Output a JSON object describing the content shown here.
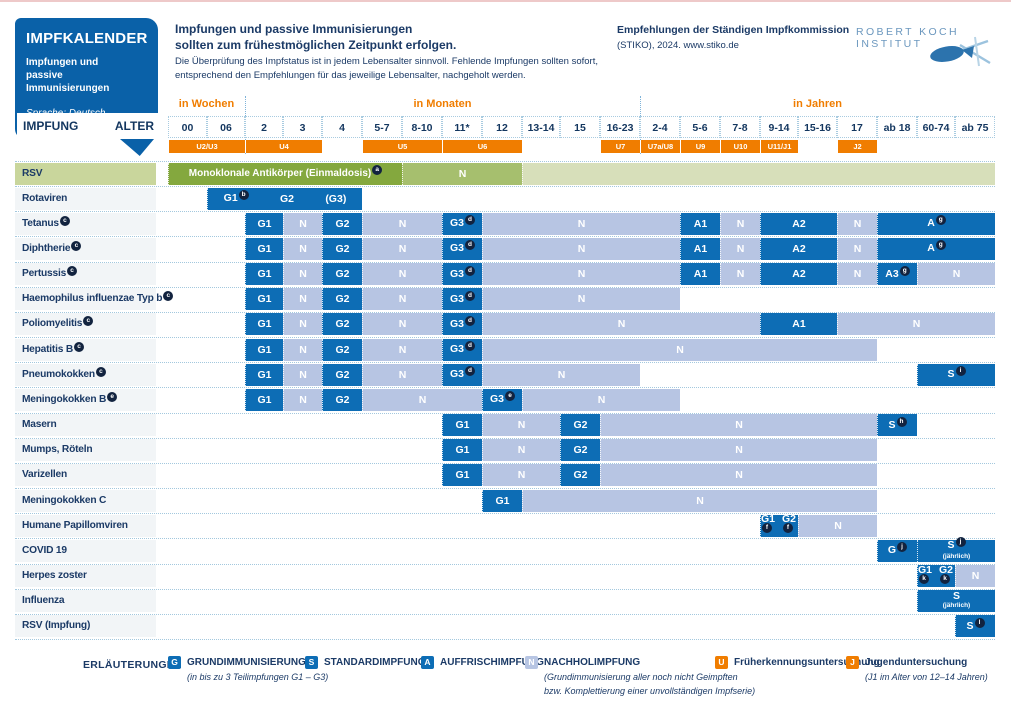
{
  "header": {
    "box_title": "IMPFKALENDER",
    "box_sub1": "Impfungen und",
    "box_sub2": "passive Immunisierungen",
    "box_language": "Sprache: Deutsch",
    "impfung_label": "IMPFUNG",
    "alter_label": "ALTER",
    "intro_bold_1": "Impfungen und passive Immunisierungen",
    "intro_bold_2": "sollten zum frühestmöglichen Zeitpunkt erfolgen.",
    "intro_small_1": "Die Überprüfung des Impfstatus ist in jedem Lebensalter sinnvoll. Fehlende Impfungen sollten sofort,",
    "intro_small_2": "entsprechend den Empfehlungen für das jeweilige Lebensalter, nachgeholt werden.",
    "stiko_bold": "Empfehlungen der Ständigen Impfkommission",
    "stiko_small": "(STIKO), 2024. www.stiko.de",
    "rki_logo_text": "ROBERT KOCH INSTITUT"
  },
  "age_scale": {
    "groups": [
      {
        "label": "in Wochen",
        "c0": 0,
        "c1": 1
      },
      {
        "label": "in Monaten",
        "c0": 2,
        "c1": 11
      },
      {
        "label": "in Jahren",
        "c0": 12,
        "c1": 20
      }
    ],
    "columns": [
      "00",
      "06",
      "2",
      "3",
      "4",
      "5-7",
      "8-10",
      "11*",
      "12",
      "13-14",
      "15",
      "16-23",
      "2-4",
      "5-6",
      "7-8",
      "9-14",
      "15-16",
      "17",
      "ab 18",
      "60-74",
      "ab 75"
    ],
    "u_bands": [
      {
        "label": "U2/U3",
        "c0": 0,
        "c1": 1
      },
      {
        "label": "U4",
        "c0": 2,
        "c1": 3
      },
      {
        "label": "U5",
        "c0": 5,
        "c1": 6
      },
      {
        "label": "U6",
        "c0": 7,
        "c1": 8
      },
      {
        "label": "U7",
        "c0": 11,
        "c1": 11
      },
      {
        "label": "U7a/U8",
        "c0": 12,
        "c1": 12
      },
      {
        "label": "U9",
        "c0": 13,
        "c1": 13
      },
      {
        "label": "U10",
        "c0": 14,
        "c1": 14
      },
      {
        "label": "U11/J1",
        "c0": 15,
        "c1": 15
      },
      {
        "label": "J2",
        "c0": 17,
        "c1": 17
      }
    ]
  },
  "rows": [
    {
      "label": "RSV",
      "label_style": "green",
      "cells": [
        {
          "style": "green-dark",
          "text": "Monoklonale Antikörper (Einmaldosis)",
          "sup": "a",
          "c0": 0,
          "c1": 5
        },
        {
          "style": "green-mid",
          "text": "N",
          "c0": 6,
          "c1": 8
        },
        {
          "style": "green-pale",
          "text": "",
          "c0": 9,
          "c1": 20
        }
      ]
    },
    {
      "label": "Rotaviren",
      "cells": [
        {
          "style": "dark",
          "parts": [
            {
              "text": "G1",
              "sup": "b"
            },
            {
              "text": "G2"
            },
            {
              "text": "(G3)"
            }
          ],
          "c0": 1,
          "c1": 4
        }
      ]
    },
    {
      "label": "Tetanus",
      "label_sup": "c",
      "cells": [
        {
          "style": "dark",
          "text": "G1",
          "c0": 2,
          "c1": 2
        },
        {
          "style": "light",
          "text": "N",
          "c0": 3,
          "c1": 3
        },
        {
          "style": "dark",
          "text": "G2",
          "c0": 4,
          "c1": 4
        },
        {
          "style": "light",
          "text": "N",
          "c0": 5,
          "c1": 6
        },
        {
          "style": "dark",
          "text": "G3",
          "sup": "d",
          "c0": 7,
          "c1": 7
        },
        {
          "style": "light",
          "text": "N",
          "c0": 8,
          "c1": 12
        },
        {
          "style": "dark",
          "text": "A1",
          "c0": 13,
          "c1": 13
        },
        {
          "style": "light",
          "text": "N",
          "c0": 14,
          "c1": 14
        },
        {
          "style": "dark",
          "text": "A2",
          "c0": 15,
          "c1": 16
        },
        {
          "style": "light",
          "text": "N",
          "c0": 17,
          "c1": 17
        },
        {
          "style": "dark",
          "text": "A",
          "sup": "g",
          "c0": 18,
          "c1": 20
        }
      ]
    },
    {
      "label": "Diphtherie",
      "label_sup": "c",
      "cells": [
        {
          "style": "dark",
          "text": "G1",
          "c0": 2,
          "c1": 2
        },
        {
          "style": "light",
          "text": "N",
          "c0": 3,
          "c1": 3
        },
        {
          "style": "dark",
          "text": "G2",
          "c0": 4,
          "c1": 4
        },
        {
          "style": "light",
          "text": "N",
          "c0": 5,
          "c1": 6
        },
        {
          "style": "dark",
          "text": "G3",
          "sup": "d",
          "c0": 7,
          "c1": 7
        },
        {
          "style": "light",
          "text": "N",
          "c0": 8,
          "c1": 12
        },
        {
          "style": "dark",
          "text": "A1",
          "c0": 13,
          "c1": 13
        },
        {
          "style": "light",
          "text": "N",
          "c0": 14,
          "c1": 14
        },
        {
          "style": "dark",
          "text": "A2",
          "c0": 15,
          "c1": 16
        },
        {
          "style": "light",
          "text": "N",
          "c0": 17,
          "c1": 17
        },
        {
          "style": "dark",
          "text": "A",
          "sup": "g",
          "c0": 18,
          "c1": 20
        }
      ]
    },
    {
      "label": "Pertussis",
      "label_sup": "c",
      "cells": [
        {
          "style": "dark",
          "text": "G1",
          "c0": 2,
          "c1": 2
        },
        {
          "style": "light",
          "text": "N",
          "c0": 3,
          "c1": 3
        },
        {
          "style": "dark",
          "text": "G2",
          "c0": 4,
          "c1": 4
        },
        {
          "style": "light",
          "text": "N",
          "c0": 5,
          "c1": 6
        },
        {
          "style": "dark",
          "text": "G3",
          "sup": "d",
          "c0": 7,
          "c1": 7
        },
        {
          "style": "light",
          "text": "N",
          "c0": 8,
          "c1": 12
        },
        {
          "style": "dark",
          "text": "A1",
          "c0": 13,
          "c1": 13
        },
        {
          "style": "light",
          "text": "N",
          "c0": 14,
          "c1": 14
        },
        {
          "style": "dark",
          "text": "A2",
          "c0": 15,
          "c1": 16
        },
        {
          "style": "light",
          "text": "N",
          "c0": 17,
          "c1": 17
        },
        {
          "style": "dark",
          "text": "A3",
          "sup": "g",
          "c0": 18,
          "c1": 18
        },
        {
          "style": "light",
          "text": "N",
          "c0": 19,
          "c1": 20
        }
      ]
    },
    {
      "label": "Haemophilus influenzae Typ b",
      "label_sup": "c",
      "cells": [
        {
          "style": "dark",
          "text": "G1",
          "c0": 2,
          "c1": 2
        },
        {
          "style": "light",
          "text": "N",
          "c0": 3,
          "c1": 3
        },
        {
          "style": "dark",
          "text": "G2",
          "c0": 4,
          "c1": 4
        },
        {
          "style": "light",
          "text": "N",
          "c0": 5,
          "c1": 6
        },
        {
          "style": "dark",
          "text": "G3",
          "sup": "d",
          "c0": 7,
          "c1": 7
        },
        {
          "style": "light",
          "text": "N",
          "c0": 8,
          "c1": 12
        }
      ]
    },
    {
      "label": "Poliomyelitis",
      "label_sup": "c",
      "cells": [
        {
          "style": "dark",
          "text": "G1",
          "c0": 2,
          "c1": 2
        },
        {
          "style": "light",
          "text": "N",
          "c0": 3,
          "c1": 3
        },
        {
          "style": "dark",
          "text": "G2",
          "c0": 4,
          "c1": 4
        },
        {
          "style": "light",
          "text": "N",
          "c0": 5,
          "c1": 6
        },
        {
          "style": "dark",
          "text": "G3",
          "sup": "d",
          "c0": 7,
          "c1": 7
        },
        {
          "style": "light",
          "text": "N",
          "c0": 8,
          "c1": 14
        },
        {
          "style": "dark",
          "text": "A1",
          "c0": 15,
          "c1": 16
        },
        {
          "style": "light",
          "text": "N",
          "c0": 17,
          "c1": 20
        }
      ]
    },
    {
      "label": "Hepatitis B",
      "label_sup": "c",
      "cells": [
        {
          "style": "dark",
          "text": "G1",
          "c0": 2,
          "c1": 2
        },
        {
          "style": "light",
          "text": "N",
          "c0": 3,
          "c1": 3
        },
        {
          "style": "dark",
          "text": "G2",
          "c0": 4,
          "c1": 4
        },
        {
          "style": "light",
          "text": "N",
          "c0": 5,
          "c1": 6
        },
        {
          "style": "dark",
          "text": "G3",
          "sup": "d",
          "c0": 7,
          "c1": 7
        },
        {
          "style": "light",
          "text": "N",
          "c0": 8,
          "c1": 17
        }
      ]
    },
    {
      "label": "Pneumokokken",
      "label_sup": "c",
      "cells": [
        {
          "style": "dark",
          "text": "G1",
          "c0": 2,
          "c1": 2
        },
        {
          "style": "light",
          "text": "N",
          "c0": 3,
          "c1": 3
        },
        {
          "style": "dark",
          "text": "G2",
          "c0": 4,
          "c1": 4
        },
        {
          "style": "light",
          "text": "N",
          "c0": 5,
          "c1": 6
        },
        {
          "style": "dark",
          "text": "G3",
          "sup": "d",
          "c0": 7,
          "c1": 7
        },
        {
          "style": "light",
          "text": "N",
          "c0": 8,
          "c1": 11
        },
        {
          "style": "dark",
          "text": "S",
          "sup": "i",
          "c0": 19,
          "c1": 20
        }
      ]
    },
    {
      "label": "Meningokokken B",
      "label_sup": "e",
      "cells": [
        {
          "style": "dark",
          "text": "G1",
          "c0": 2,
          "c1": 2
        },
        {
          "style": "light",
          "text": "N",
          "c0": 3,
          "c1": 3
        },
        {
          "style": "dark",
          "text": "G2",
          "c0": 4,
          "c1": 4
        },
        {
          "style": "light",
          "text": "N",
          "c0": 5,
          "c1": 7
        },
        {
          "style": "dark",
          "text": "G3",
          "sup": "e",
          "c0": 8,
          "c1": 8
        },
        {
          "style": "light",
          "text": "N",
          "c0": 9,
          "c1": 12
        }
      ]
    },
    {
      "label": "Masern",
      "cells": [
        {
          "style": "dark",
          "text": "G1",
          "c0": 7,
          "c1": 7
        },
        {
          "style": "light",
          "text": "N",
          "c0": 8,
          "c1": 9
        },
        {
          "style": "dark",
          "text": "G2",
          "c0": 10,
          "c1": 10
        },
        {
          "style": "light",
          "text": "N",
          "c0": 11,
          "c1": 17
        },
        {
          "style": "dark",
          "text": "S",
          "sup": "h",
          "c0": 18,
          "c1": 18
        }
      ]
    },
    {
      "label": "Mumps, Röteln",
      "cells": [
        {
          "style": "dark",
          "text": "G1",
          "c0": 7,
          "c1": 7
        },
        {
          "style": "light",
          "text": "N",
          "c0": 8,
          "c1": 9
        },
        {
          "style": "dark",
          "text": "G2",
          "c0": 10,
          "c1": 10
        },
        {
          "style": "light",
          "text": "N",
          "c0": 11,
          "c1": 17
        }
      ]
    },
    {
      "label": "Varizellen",
      "cells": [
        {
          "style": "dark",
          "text": "G1",
          "c0": 7,
          "c1": 7
        },
        {
          "style": "light",
          "text": "N",
          "c0": 8,
          "c1": 9
        },
        {
          "style": "dark",
          "text": "G2",
          "c0": 10,
          "c1": 10
        },
        {
          "style": "light",
          "text": "N",
          "c0": 11,
          "c1": 17
        }
      ]
    },
    {
      "label": "Meningokokken C",
      "cells": [
        {
          "style": "dark",
          "text": "G1",
          "c0": 8,
          "c1": 8
        },
        {
          "style": "light",
          "text": "N",
          "c0": 9,
          "c1": 17
        }
      ]
    },
    {
      "label": "Humane Papillomviren",
      "cells": [
        {
          "style": "dark",
          "parts": [
            {
              "text": "G1",
              "sup": "f"
            },
            {
              "text": "G2",
              "sup": "f"
            }
          ],
          "c0": 15,
          "c1": 15
        },
        {
          "style": "light",
          "text": "N",
          "c0": 16,
          "c1": 17
        }
      ]
    },
    {
      "label": "COVID 19",
      "cells": [
        {
          "style": "dark",
          "text": "G",
          "sup": "j",
          "c0": 18,
          "c1": 18
        },
        {
          "style": "dark",
          "text": "S",
          "sup": "j",
          "sub": "(jährlich)",
          "c0": 19,
          "c1": 20
        }
      ]
    },
    {
      "label": "Herpes zoster",
      "cells": [
        {
          "style": "dark",
          "parts": [
            {
              "text": "G1",
              "sup": "k"
            },
            {
              "text": "G2",
              "sup": "k"
            }
          ],
          "c0": 19,
          "c1": 19
        },
        {
          "style": "light",
          "text": "N",
          "c0": 20,
          "c1": 20
        }
      ]
    },
    {
      "label": "Influenza",
      "cells": [
        {
          "style": "dark",
          "text": "S",
          "sub": "(jährlich)",
          "c0": 19,
          "c1": 20
        }
      ]
    },
    {
      "label": "RSV (Impfung)",
      "cells": [
        {
          "style": "dark",
          "text": "S",
          "sup": "l",
          "c0": 20,
          "c1": 20
        }
      ]
    }
  ],
  "legend": {
    "title": "ERLÄUTERUNGEN",
    "items": [
      {
        "key": "G",
        "style": "dark",
        "label": "GRUNDIMMUNISIERUNG",
        "sub": [
          "(in bis zu 3 Teilimpfungen G1 – G3)"
        ]
      },
      {
        "key": "S",
        "style": "dark",
        "label": "STANDARDIMPFUNG"
      },
      {
        "key": "A",
        "style": "dark",
        "label": "AUFFRISCHIMPFUNG"
      },
      {
        "key": "N",
        "style": "light",
        "label": "NACHHOLIMPFUNG",
        "sub": [
          "(Grundimmunisierung aller noch nicht Geimpften",
          "bzw. Komplettierung einer unvollständigen Impfserie)"
        ]
      },
      {
        "key": "U",
        "style": "orange",
        "label": "Früherkennungsuntersuchung"
      },
      {
        "key": "J",
        "style": "orange",
        "label": "Jugenduntersuchung",
        "sub": [
          "(J1 im Alter von 12–14 Jahren)"
        ]
      }
    ]
  }
}
